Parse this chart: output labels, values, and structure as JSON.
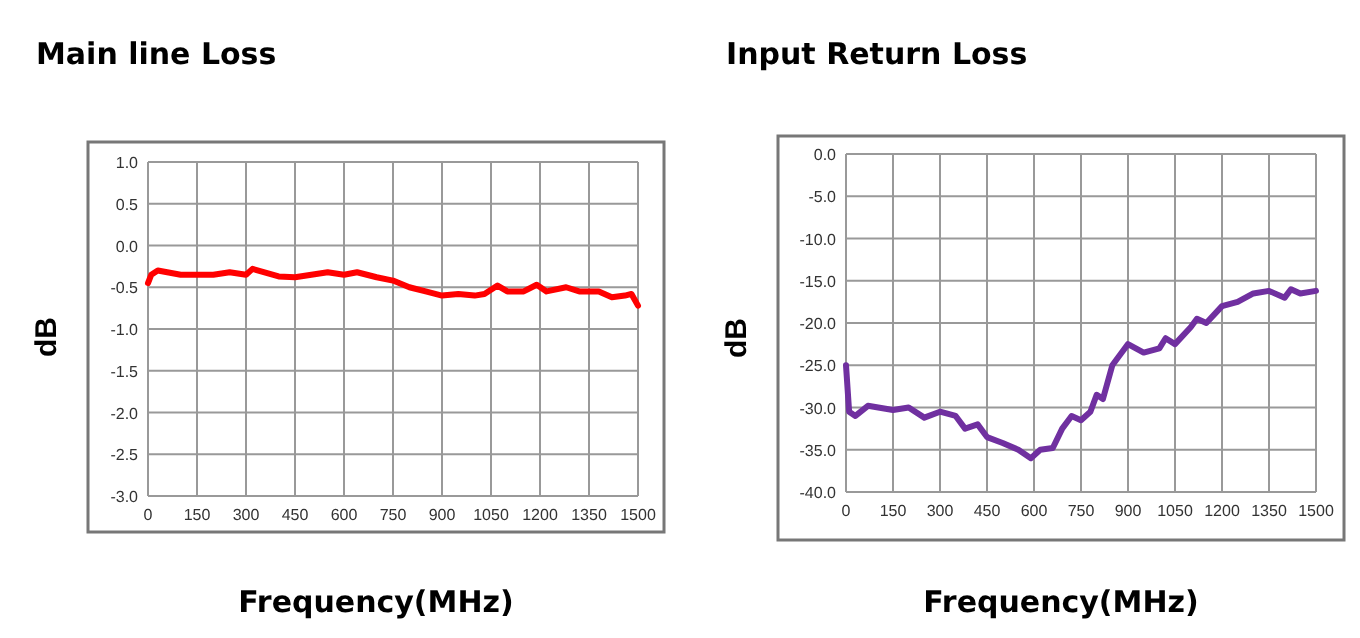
{
  "chart_data": [
    {
      "type": "line",
      "title": "Main line Loss",
      "xlabel": "Frequency(MHz)",
      "ylabel": "dB",
      "grid": true,
      "line_style": "solid",
      "xlim": [
        0,
        1500
      ],
      "xticks": [
        0,
        150,
        300,
        450,
        600,
        750,
        900,
        1050,
        1200,
        1350,
        1500
      ],
      "ylim": [
        -3,
        1
      ],
      "yticks": [
        {
          "value": -3,
          "label": "-3.0"
        },
        {
          "value": -2.5,
          "label": "-2.5"
        },
        {
          "value": -2,
          "label": "-2.0"
        },
        {
          "value": -1.5,
          "label": "-1.5"
        },
        {
          "value": -1,
          "label": "-1.0"
        },
        {
          "value": -0.5,
          "label": "-0.5"
        },
        {
          "value": 0,
          "label": "0.0"
        },
        {
          "value": 0.5,
          "label": "0.5"
        },
        {
          "value": 1,
          "label": "1.0"
        }
      ],
      "series": [
        {
          "color": "#ff0000",
          "x": [
            0,
            10,
            30,
            100,
            200,
            250,
            300,
            320,
            400,
            450,
            500,
            550,
            600,
            640,
            700,
            750,
            800,
            850,
            900,
            950,
            1000,
            1030,
            1070,
            1100,
            1150,
            1190,
            1220,
            1280,
            1320,
            1380,
            1420,
            1460,
            1480,
            1500
          ],
          "values": [
            -0.45,
            -0.35,
            -0.3,
            -0.35,
            -0.35,
            -0.32,
            -0.35,
            -0.28,
            -0.37,
            -0.38,
            -0.35,
            -0.32,
            -0.35,
            -0.32,
            -0.38,
            -0.42,
            -0.5,
            -0.55,
            -0.6,
            -0.58,
            -0.6,
            -0.58,
            -0.48,
            -0.55,
            -0.55,
            -0.47,
            -0.55,
            -0.5,
            -0.55,
            -0.55,
            -0.62,
            -0.6,
            -0.58,
            -0.72
          ]
        }
      ]
    },
    {
      "type": "line",
      "title": "Input Return Loss",
      "xlabel": "Frequency(MHz)",
      "ylabel": "dB",
      "grid": true,
      "line_style": "solid",
      "xlim": [
        0,
        1500
      ],
      "xticks": [
        0,
        150,
        300,
        450,
        600,
        750,
        900,
        1050,
        1200,
        1350,
        1500
      ],
      "ylim": [
        -40,
        0
      ],
      "yticks": [
        {
          "value": -40,
          "label": "-40.0"
        },
        {
          "value": -35,
          "label": "-35.0"
        },
        {
          "value": -30,
          "label": "-30.0"
        },
        {
          "value": -25,
          "label": "-25.0"
        },
        {
          "value": -20,
          "label": "-20.0"
        },
        {
          "value": -15,
          "label": "-15.0"
        },
        {
          "value": -10,
          "label": "-10.0"
        },
        {
          "value": -5,
          "label": "-5.0"
        },
        {
          "value": 0,
          "label": "0.0"
        }
      ],
      "series": [
        {
          "color": "#7030a0",
          "x": [
            0,
            10,
            30,
            70,
            150,
            200,
            250,
            300,
            350,
            380,
            420,
            450,
            500,
            550,
            590,
            620,
            660,
            690,
            720,
            750,
            780,
            800,
            820,
            850,
            880,
            900,
            950,
            1000,
            1020,
            1050,
            1100,
            1120,
            1150,
            1200,
            1250,
            1300,
            1350,
            1400,
            1420,
            1450,
            1500
          ],
          "values": [
            -25,
            -30.5,
            -31,
            -29.8,
            -30.3,
            -30,
            -31.2,
            -30.5,
            -31,
            -32.5,
            -32,
            -33.5,
            -34.2,
            -35,
            -36,
            -35,
            -34.8,
            -32.5,
            -31,
            -31.5,
            -30.5,
            -28.5,
            -29,
            -25,
            -23.5,
            -22.5,
            -23.5,
            -23,
            -21.8,
            -22.5,
            -20.5,
            -19.5,
            -20,
            -18,
            -17.5,
            -16.5,
            -16.2,
            -17,
            -16,
            -16.5,
            -16.2
          ]
        }
      ]
    }
  ]
}
